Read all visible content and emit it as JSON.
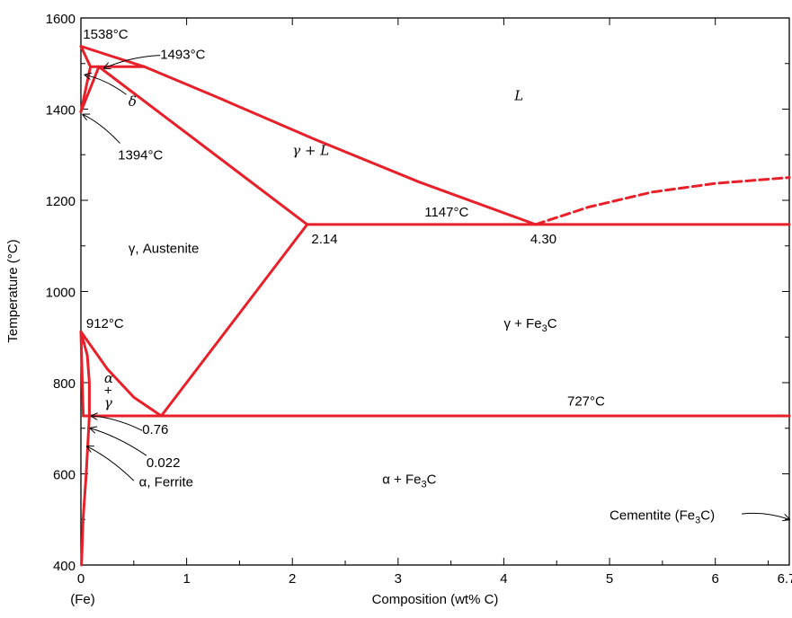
{
  "chart_data": {
    "type": "line",
    "title": "",
    "xlabel": "Composition (wt% C)",
    "ylabel": "Temperature (°C)",
    "xlim": [
      0,
      6.7
    ],
    "ylim": [
      400,
      1600
    ],
    "x_ticks": [
      {
        "value": 0,
        "label": "0"
      },
      {
        "value": 1,
        "label": "1"
      },
      {
        "value": 2,
        "label": "2"
      },
      {
        "value": 3,
        "label": "3"
      },
      {
        "value": 4,
        "label": "4"
      },
      {
        "value": 5,
        "label": "5"
      },
      {
        "value": 6,
        "label": "6"
      },
      {
        "value": 6.7,
        "label": "6.7"
      }
    ],
    "y_ticks": [
      {
        "value": 400,
        "label": "400"
      },
      {
        "value": 600,
        "label": "600"
      },
      {
        "value": 800,
        "label": "800"
      },
      {
        "value": 1000,
        "label": "1000"
      },
      {
        "value": 1200,
        "label": "1200"
      },
      {
        "value": 1400,
        "label": "1400"
      },
      {
        "value": 1600,
        "label": "1600"
      }
    ],
    "x_origin_note": "(Fe)",
    "grid": false,
    "line_color": "#e8202a",
    "series": [
      {
        "style": "solid",
        "points": [
          [
            0,
            1538
          ],
          [
            0.09,
            1493
          ]
        ]
      },
      {
        "style": "solid",
        "points": [
          [
            0,
            1538
          ],
          [
            0.6,
            1493
          ]
        ]
      },
      {
        "style": "solid",
        "points": [
          [
            0.09,
            1493
          ],
          [
            0.6,
            1493
          ]
        ]
      },
      {
        "style": "solid",
        "points": [
          [
            0,
            1394
          ],
          [
            0.09,
            1493
          ]
        ]
      },
      {
        "style": "solid",
        "points": [
          [
            0,
            1394
          ],
          [
            0.17,
            1493
          ]
        ]
      },
      {
        "style": "solid",
        "points": [
          [
            0.17,
            1493
          ],
          [
            2.14,
            1147
          ]
        ]
      },
      {
        "style": "solid",
        "points": [
          [
            0.6,
            1493
          ],
          [
            1.3,
            1425
          ],
          [
            2.2,
            1335
          ],
          [
            3.2,
            1240
          ],
          [
            4.3,
            1147
          ]
        ]
      },
      {
        "style": "solid",
        "points": [
          [
            2.14,
            1147
          ],
          [
            6.7,
            1147
          ]
        ]
      },
      {
        "style": "dashed",
        "points": [
          [
            4.3,
            1147
          ],
          [
            4.8,
            1185
          ],
          [
            5.4,
            1218
          ],
          [
            6.0,
            1237
          ],
          [
            6.7,
            1250
          ]
        ]
      },
      {
        "style": "solid",
        "points": [
          [
            0.76,
            727
          ],
          [
            2.14,
            1147
          ]
        ]
      },
      {
        "style": "solid",
        "points": [
          [
            0,
            912
          ],
          [
            0.25,
            830
          ],
          [
            0.5,
            768
          ],
          [
            0.76,
            727
          ]
        ]
      },
      {
        "style": "solid",
        "points": [
          [
            0,
            912
          ],
          [
            0.022,
            727
          ]
        ]
      },
      {
        "style": "solid",
        "points": [
          [
            0,
            912
          ],
          [
            0.06,
            860
          ],
          [
            0.08,
            800
          ],
          [
            0.08,
            727
          ]
        ]
      },
      {
        "style": "solid",
        "points": [
          [
            0.022,
            727
          ],
          [
            6.7,
            727
          ]
        ]
      },
      {
        "style": "solid",
        "points": [
          [
            0.08,
            727
          ],
          [
            0.05,
            600
          ],
          [
            0.02,
            500
          ],
          [
            0.006,
            400
          ]
        ]
      }
    ],
    "labels": [
      {
        "text": "1538°C",
        "x": 0.02,
        "y": 1555
      },
      {
        "text": "1493°C",
        "x": 0.75,
        "y": 1510
      },
      {
        "text": "δ",
        "x": 0.45,
        "y": 1407,
        "italic": true
      },
      {
        "text": "1394°C",
        "x": 0.35,
        "y": 1290
      },
      {
        "text": "L",
        "x": 4.1,
        "y": 1420,
        "italic": true
      },
      {
        "text": "γ + L",
        "x": 2.0,
        "y": 1300,
        "italic": true
      },
      {
        "text": "1147°C",
        "x": 3.25,
        "y": 1165
      },
      {
        "text": "2.14",
        "x": 2.18,
        "y": 1105
      },
      {
        "text": "4.30",
        "x": 4.25,
        "y": 1105
      },
      {
        "text": "γ, Austenite",
        "x": 0.45,
        "y": 1085
      },
      {
        "text": "912°C",
        "x": 0.05,
        "y": 920
      },
      {
        "text": "γ + Fe3C",
        "x": 4.0,
        "y": 920
      },
      {
        "text": "α",
        "x": 0.22,
        "y": 800,
        "italic": true
      },
      {
        "text": "+",
        "x": 0.22,
        "y": 773
      },
      {
        "text": "γ",
        "x": 0.22,
        "y": 746,
        "italic": true
      },
      {
        "text": "727°C",
        "x": 4.6,
        "y": 750
      },
      {
        "text": "0.76",
        "x": 0.58,
        "y": 688
      },
      {
        "text": "0.022",
        "x": 0.62,
        "y": 615
      },
      {
        "text": "α, Ferrite",
        "x": 0.55,
        "y": 572
      },
      {
        "text": "α + Fe3C",
        "x": 2.85,
        "y": 578
      },
      {
        "text": "Cementite (Fe3C)",
        "x": 5.0,
        "y": 500
      }
    ],
    "pointers": [
      {
        "from": [
          0.75,
          1518
        ],
        "to": [
          0.22,
          1490
        ]
      },
      {
        "from": [
          0.43,
          1432
        ],
        "to": [
          0.04,
          1475
        ]
      },
      {
        "from": [
          0.37,
          1325
        ],
        "to": [
          0.02,
          1388
        ]
      },
      {
        "from": [
          0.58,
          695
        ],
        "to": [
          0.1,
          727
        ]
      },
      {
        "from": [
          0.62,
          640
        ],
        "to": [
          0.09,
          700
        ]
      },
      {
        "from": [
          0.5,
          585
        ],
        "to": [
          0.06,
          660
        ]
      },
      {
        "from": [
          6.25,
          512
        ],
        "to": [
          6.7,
          500
        ]
      }
    ]
  }
}
